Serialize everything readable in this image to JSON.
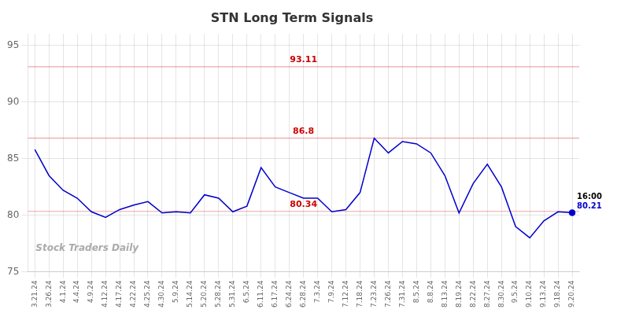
{
  "chart_data": {
    "type": "line",
    "title": "STN Long Term Signals",
    "categories": [
      "3.21.24",
      "3.26.24",
      "4.1.24",
      "4.4.24",
      "4.9.24",
      "4.12.24",
      "4.17.24",
      "4.22.24",
      "4.25.24",
      "4.30.24",
      "5.9.24",
      "5.14.24",
      "5.20.24",
      "5.28.24",
      "5.31.24",
      "6.5.24",
      "6.11.24",
      "6.17.24",
      "6.24.24",
      "6.28.24",
      "7.3.24",
      "7.9.24",
      "7.12.24",
      "7.18.24",
      "7.23.24",
      "7.26.24",
      "7.31.24",
      "8.5.24",
      "8.8.24",
      "8.13.24",
      "8.19.24",
      "8.22.24",
      "8.27.24",
      "8.30.24",
      "9.5.24",
      "9.10.24",
      "9.13.24",
      "9.18.24",
      "9.20.24"
    ],
    "values": [
      85.8,
      83.5,
      82.2,
      81.5,
      80.3,
      79.8,
      80.5,
      80.9,
      81.2,
      80.2,
      80.3,
      80.2,
      81.8,
      81.5,
      80.3,
      80.8,
      84.2,
      82.5,
      82.0,
      81.5,
      81.5,
      80.3,
      80.5,
      82.0,
      86.8,
      85.5,
      86.5,
      86.3,
      85.5,
      83.5,
      80.2,
      82.8,
      84.5,
      82.5,
      79.0,
      78.0,
      79.5,
      80.3,
      80.21
    ],
    "color": "#0000cc",
    "ylim": [
      75,
      96
    ],
    "yticks": [
      75,
      80,
      85,
      90,
      95
    ],
    "grid": true,
    "hlines": [
      {
        "value": 93.11,
        "label": "93.11",
        "color": "#cc0000"
      },
      {
        "value": 86.8,
        "label": "86.8",
        "color": "#cc0000"
      },
      {
        "value": 80.34,
        "label": "80.34",
        "color": "#cc0000"
      }
    ],
    "annotations": [
      {
        "text": "16:00",
        "color": "#000000"
      },
      {
        "text": "80.21",
        "color": "#0000cc"
      }
    ],
    "watermark": "Stock Traders Daily"
  }
}
